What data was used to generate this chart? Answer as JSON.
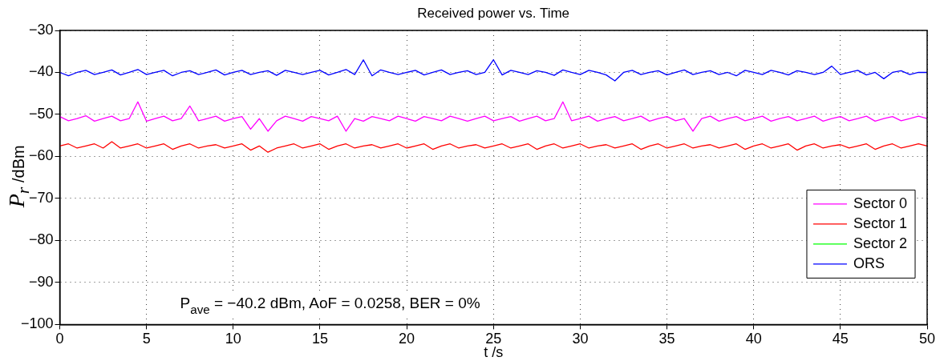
{
  "chart_data": {
    "type": "line",
    "title": "Received power vs. Time",
    "xlabel": "t /s",
    "ylabel": "P$_{r}$ /dBm",
    "x": [
      0,
      0.5,
      1,
      1.5,
      2,
      2.5,
      3,
      3.5,
      4,
      4.5,
      5,
      5.5,
      6,
      6.5,
      7,
      7.5,
      8,
      8.5,
      9,
      9.5,
      10,
      10.5,
      11,
      11.5,
      12,
      12.5,
      13,
      13.5,
      14,
      14.5,
      15,
      15.5,
      16,
      16.5,
      17,
      17.5,
      18,
      18.5,
      19,
      19.5,
      20,
      20.5,
      21,
      21.5,
      22,
      22.5,
      23,
      23.5,
      24,
      24.5,
      25,
      25.5,
      26,
      26.5,
      27,
      27.5,
      28,
      28.5,
      29,
      29.5,
      30,
      30.5,
      31,
      31.5,
      32,
      32.5,
      33,
      33.5,
      34,
      34.5,
      35,
      35.5,
      36,
      36.5,
      37,
      37.5,
      38,
      38.5,
      39,
      39.5,
      40,
      40.5,
      41,
      41.5,
      42,
      42.5,
      43,
      43.5,
      44,
      44.5,
      45,
      45.5,
      46,
      46.5,
      47,
      47.5,
      48,
      48.5,
      49,
      49.5,
      50
    ],
    "series": [
      {
        "name": "Sector 0",
        "color": "#ff00ff",
        "values": [
          -50.5,
          -51.5,
          -51,
          -50.3,
          -51.6,
          -51,
          -50.4,
          -51.5,
          -51,
          -47,
          -51.6,
          -51,
          -50.4,
          -51.5,
          -51,
          -48,
          -51.5,
          -51,
          -50.4,
          -51.6,
          -51,
          -50.5,
          -53.5,
          -51,
          -54,
          -51.5,
          -50.4,
          -51,
          -51.6,
          -50.5,
          -51,
          -51.5,
          -50.4,
          -54,
          -51,
          -51.6,
          -50.5,
          -51,
          -51.5,
          -50.4,
          -51,
          -51.6,
          -50.5,
          -51,
          -51.5,
          -50.4,
          -51,
          -51.6,
          -51,
          -50.4,
          -51.5,
          -51,
          -50.5,
          -51.6,
          -51,
          -50.4,
          -51.5,
          -51,
          -47,
          -51.5,
          -51,
          -50.4,
          -51.6,
          -51,
          -50.5,
          -51.5,
          -51,
          -50.4,
          -51.6,
          -51,
          -50.5,
          -51.5,
          -51,
          -54,
          -51,
          -50.4,
          -51.6,
          -51,
          -50.5,
          -51.5,
          -51,
          -50.4,
          -51.6,
          -51,
          -50.5,
          -51.5,
          -51,
          -50.4,
          -51.6,
          -51,
          -50.5,
          -51.5,
          -51,
          -50.4,
          -51.6,
          -51,
          -50.5,
          -51.5,
          -51,
          -50.4,
          -51
        ]
      },
      {
        "name": "Sector 1",
        "color": "#ff0000",
        "values": [
          -57.5,
          -57,
          -58,
          -57.5,
          -57,
          -58,
          -56.5,
          -58,
          -57.5,
          -57,
          -58,
          -57.5,
          -57,
          -58.3,
          -57.5,
          -57,
          -58,
          -57.5,
          -57.2,
          -58,
          -57.5,
          -57,
          -58.5,
          -57.5,
          -59,
          -58,
          -57.5,
          -57,
          -58,
          -57.5,
          -57,
          -58.3,
          -57.5,
          -57,
          -58,
          -57.5,
          -57.2,
          -58,
          -57.5,
          -57,
          -58,
          -57.5,
          -57,
          -58.3,
          -57.5,
          -57,
          -58,
          -57.5,
          -57.2,
          -58,
          -57.5,
          -57,
          -58,
          -57.5,
          -57,
          -58.3,
          -57.5,
          -57,
          -58,
          -57.5,
          -57,
          -58,
          -57.5,
          -57.2,
          -58,
          -57.5,
          -57,
          -58.3,
          -57.5,
          -57,
          -58,
          -57.5,
          -57,
          -58,
          -57.5,
          -57.2,
          -58,
          -57.5,
          -57,
          -58.3,
          -57.5,
          -57,
          -58,
          -57.5,
          -57,
          -58.5,
          -57.5,
          -57,
          -58,
          -57.5,
          -57.2,
          -58,
          -57.5,
          -57,
          -58.3,
          -57.5,
          -57,
          -58,
          -57.5,
          -57,
          -57.5
        ]
      },
      {
        "name": "Sector 2",
        "color": "#00ff00",
        "values": [
          null,
          null,
          null,
          null,
          null,
          null,
          null,
          null,
          null,
          null,
          null,
          null,
          null,
          null,
          null,
          null,
          null,
          null,
          null,
          null,
          null,
          null,
          null,
          null,
          null,
          null,
          null,
          null,
          null,
          null,
          null,
          null,
          null,
          null,
          null,
          null,
          null,
          null,
          null,
          null,
          null,
          null,
          null,
          null,
          null,
          null,
          null,
          null,
          null,
          null,
          null,
          null,
          null,
          null,
          null,
          null,
          null,
          null,
          null,
          null,
          null,
          null,
          null,
          null,
          null,
          null,
          null,
          null,
          null,
          null,
          null,
          null,
          null,
          null,
          null,
          null,
          null,
          null,
          null,
          null,
          null,
          null,
          null,
          null,
          null,
          null,
          null,
          null,
          null,
          null,
          null,
          null,
          null,
          null,
          null,
          null,
          null,
          null,
          null,
          null,
          null
        ]
      },
      {
        "name": "ORS",
        "color": "#0000ff",
        "values": [
          -40,
          -40.8,
          -40,
          -39.5,
          -40.5,
          -40,
          -39.4,
          -40.6,
          -40,
          -39.3,
          -40.5,
          -40,
          -39.5,
          -40.8,
          -40,
          -39.6,
          -40.5,
          -40,
          -39.4,
          -40.6,
          -40,
          -39.5,
          -40.5,
          -40,
          -39.6,
          -40.7,
          -39.5,
          -40,
          -40.5,
          -40,
          -39.5,
          -40.6,
          -40,
          -39.3,
          -40.5,
          -37,
          -40.8,
          -39.4,
          -40,
          -40.5,
          -40,
          -39.5,
          -40.6,
          -40,
          -39.4,
          -40.5,
          -40,
          -39.6,
          -40.5,
          -40,
          -37,
          -40.6,
          -39.5,
          -40,
          -40.5,
          -39.6,
          -40,
          -40.7,
          -39.4,
          -40,
          -40.5,
          -39.5,
          -40,
          -40.6,
          -42,
          -40,
          -39.5,
          -40.5,
          -40,
          -39.6,
          -40.6,
          -40,
          -39.4,
          -40.5,
          -40,
          -39.6,
          -40.5,
          -40,
          -40.8,
          -39.5,
          -40,
          -40.5,
          -39.5,
          -40,
          -40.6,
          -39.6,
          -40,
          -40.5,
          -40,
          -38.5,
          -40.5,
          -40,
          -39.5,
          -40.6,
          -40,
          -41.5,
          -40,
          -39.6,
          -40.5,
          -40,
          -40
        ]
      }
    ],
    "xlim": [
      0,
      50
    ],
    "xticks": [
      0,
      5,
      10,
      15,
      20,
      25,
      30,
      35,
      40,
      45,
      50
    ],
    "ylim": [
      -100,
      -30
    ],
    "yticks": [
      -100,
      -90,
      -80,
      -70,
      -60,
      -50,
      -40,
      -30
    ],
    "grid": true,
    "legend": "bottom right",
    "marker": "none",
    "line_style": "solid",
    "annotations": [
      "P$_{ave}$ = −40.2 dBm, AoF = 0.0258, BER = 0%"
    ]
  }
}
